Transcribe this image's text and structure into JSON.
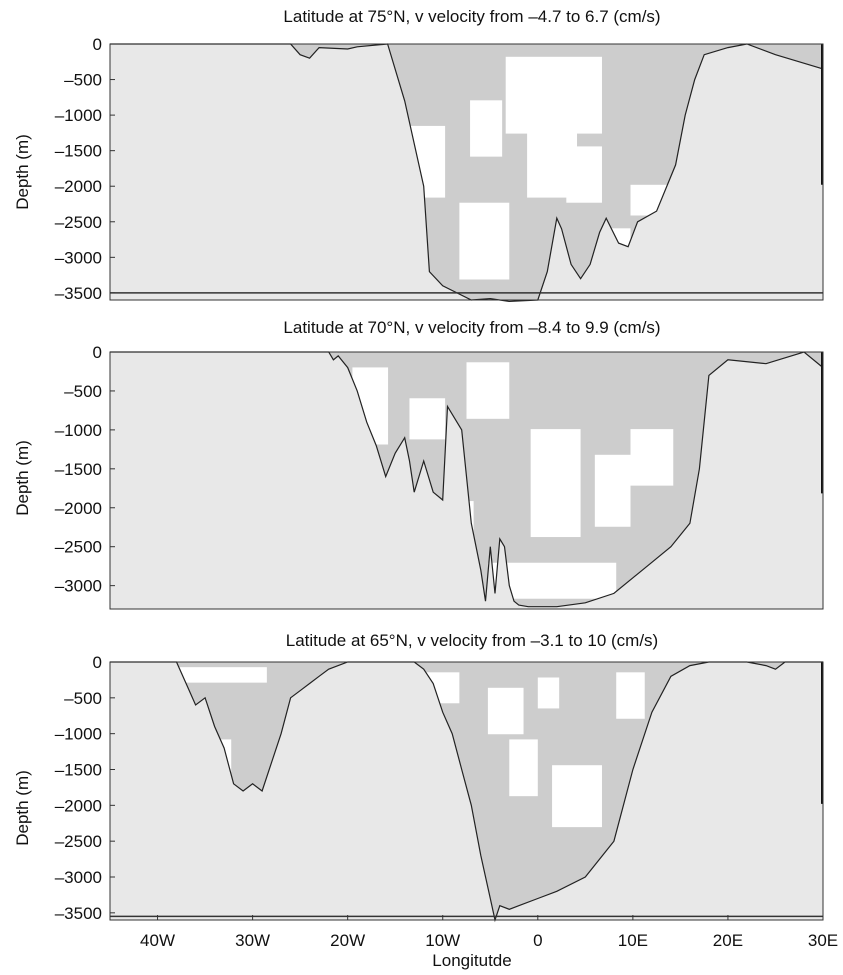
{
  "chart_data": [
    {
      "type": "area",
      "title": "Latitude at 75°N, v velocity from –4.7 to 6.7 (cm/s)",
      "ylabel": "Depth (m)",
      "xlabel": "",
      "xlim": [
        -45,
        30
      ],
      "ylim": [
        -3600,
        0
      ],
      "yticks": [
        0,
        -500,
        -1000,
        -1500,
        -2000,
        -2500,
        -3000,
        -3500
      ],
      "ytick_labels": [
        "0",
        "–500",
        "–1000",
        "–1500",
        "–2000",
        "–2500",
        "–3000",
        "–3500"
      ],
      "colors": {
        "land": "#e8e8e8",
        "positive_v": "#cdcdcd",
        "negative_v": "#ffffff"
      },
      "bathymetry": {
        "x": [
          -45,
          -26,
          -25,
          -24,
          -23,
          -20,
          -19,
          -15.8,
          -14,
          -12,
          -11.4,
          -10,
          -7,
          -5,
          -3,
          0,
          1,
          2,
          2.5,
          3.5,
          4.5,
          5.5,
          6.5,
          7.2,
          8.5,
          9.5,
          10.5,
          12.5,
          14.5,
          15.5,
          16.5,
          17.5,
          20,
          22,
          25,
          30
        ],
        "depth": [
          0,
          0,
          -150,
          -200,
          -50,
          -70,
          -40,
          0,
          -800,
          -2000,
          -3200,
          -3400,
          -3600,
          -3580,
          -3620,
          -3600,
          -3200,
          -2450,
          -2600,
          -3100,
          -3300,
          -3100,
          -2650,
          -2450,
          -2800,
          -2850,
          -2500,
          -2350,
          -1700,
          -1000,
          -500,
          -150,
          -50,
          0,
          -150,
          -350
        ]
      },
      "seafloor_band_depth": -3500
    },
    {
      "type": "area",
      "title": "Latitude at 70°N, v velocity from –8.4 to 9.9 (cm/s)",
      "ylabel": "Depth (m)",
      "xlabel": "",
      "xlim": [
        -45,
        30
      ],
      "ylim": [
        -3300,
        0
      ],
      "yticks": [
        0,
        -500,
        -1000,
        -1500,
        -2000,
        -2500,
        -3000
      ],
      "ytick_labels": [
        "0",
        "–500",
        "–1000",
        "–1500",
        "–2000",
        "–2500",
        "–3000"
      ],
      "colors": {
        "land": "#e8e8e8",
        "positive_v": "#cdcdcd",
        "negative_v": "#ffffff"
      },
      "bathymetry": {
        "x": [
          -45,
          -22,
          -21.5,
          -21,
          -20,
          -19,
          -18,
          -17,
          -16,
          -15,
          -14,
          -13.5,
          -13,
          -12,
          -11,
          -10,
          -9.5,
          -8,
          -7,
          -6,
          -5.5,
          -5,
          -4.5,
          -4,
          -3.5,
          -3,
          -2.5,
          -2,
          -1,
          0,
          2,
          5,
          8,
          10,
          12,
          14,
          16,
          17,
          18,
          20,
          24,
          28,
          30
        ],
        "depth": [
          0,
          0,
          -100,
          -50,
          -200,
          -500,
          -900,
          -1200,
          -1600,
          -1300,
          -1100,
          -1400,
          -1800,
          -1400,
          -1800,
          -1900,
          -700,
          -1000,
          -2200,
          -2800,
          -3200,
          -2500,
          -3100,
          -2400,
          -2500,
          -3000,
          -3200,
          -3250,
          -3270,
          -3270,
          -3270,
          -3220,
          -3100,
          -2900,
          -2700,
          -2500,
          -2200,
          -1500,
          -300,
          -100,
          -150,
          0,
          -200
        ]
      }
    },
    {
      "type": "area",
      "title": "Latitude at 65°N, v velocity from –3.1 to 10 (cm/s)",
      "ylabel": "Depth (m)",
      "xlabel": "Longitutde",
      "xlim": [
        -45,
        30
      ],
      "ylim": [
        -3600,
        0
      ],
      "yticks": [
        0,
        -500,
        -1000,
        -1500,
        -2000,
        -2500,
        -3000,
        -3500
      ],
      "ytick_labels": [
        "0",
        "–500",
        "–1000",
        "–1500",
        "–2000",
        "–2500",
        "–3000",
        "–3500"
      ],
      "xticks": [
        -40,
        -30,
        -20,
        -10,
        0,
        10,
        20,
        30
      ],
      "xtick_labels": [
        "40W",
        "30W",
        "20W",
        "10W",
        "0",
        "10E",
        "20E",
        "30E"
      ],
      "colors": {
        "land": "#e8e8e8",
        "positive_v": "#cdcdcd",
        "negative_v": "#ffffff"
      },
      "bathymetry": {
        "x": [
          -45,
          -38,
          -37,
          -36,
          -35,
          -34,
          -33,
          -32,
          -31,
          -30,
          -29,
          -28,
          -27,
          -26,
          -25,
          -24,
          -23,
          -22,
          -21,
          -20,
          -19,
          -13,
          -12,
          -11,
          -10,
          -9,
          -8,
          -7,
          -6,
          -5,
          -4.5,
          -4,
          -3,
          -2,
          0,
          2,
          5,
          8,
          10,
          12,
          14,
          16,
          18,
          20,
          22,
          24,
          25,
          26,
          30
        ],
        "depth": [
          0,
          0,
          -300,
          -600,
          -500,
          -900,
          -1200,
          -1700,
          -1800,
          -1700,
          -1800,
          -1400,
          -1000,
          -500,
          -400,
          -300,
          -200,
          -100,
          -50,
          0,
          0,
          0,
          -100,
          -300,
          -700,
          -1000,
          -1500,
          -2000,
          -2700,
          -3300,
          -3600,
          -3400,
          -3450,
          -3400,
          -3300,
          -3200,
          -3000,
          -2500,
          -1500,
          -700,
          -200,
          -50,
          0,
          0,
          0,
          -50,
          -100,
          0,
          0
        ]
      },
      "seafloor_band_depth": -3550
    }
  ]
}
